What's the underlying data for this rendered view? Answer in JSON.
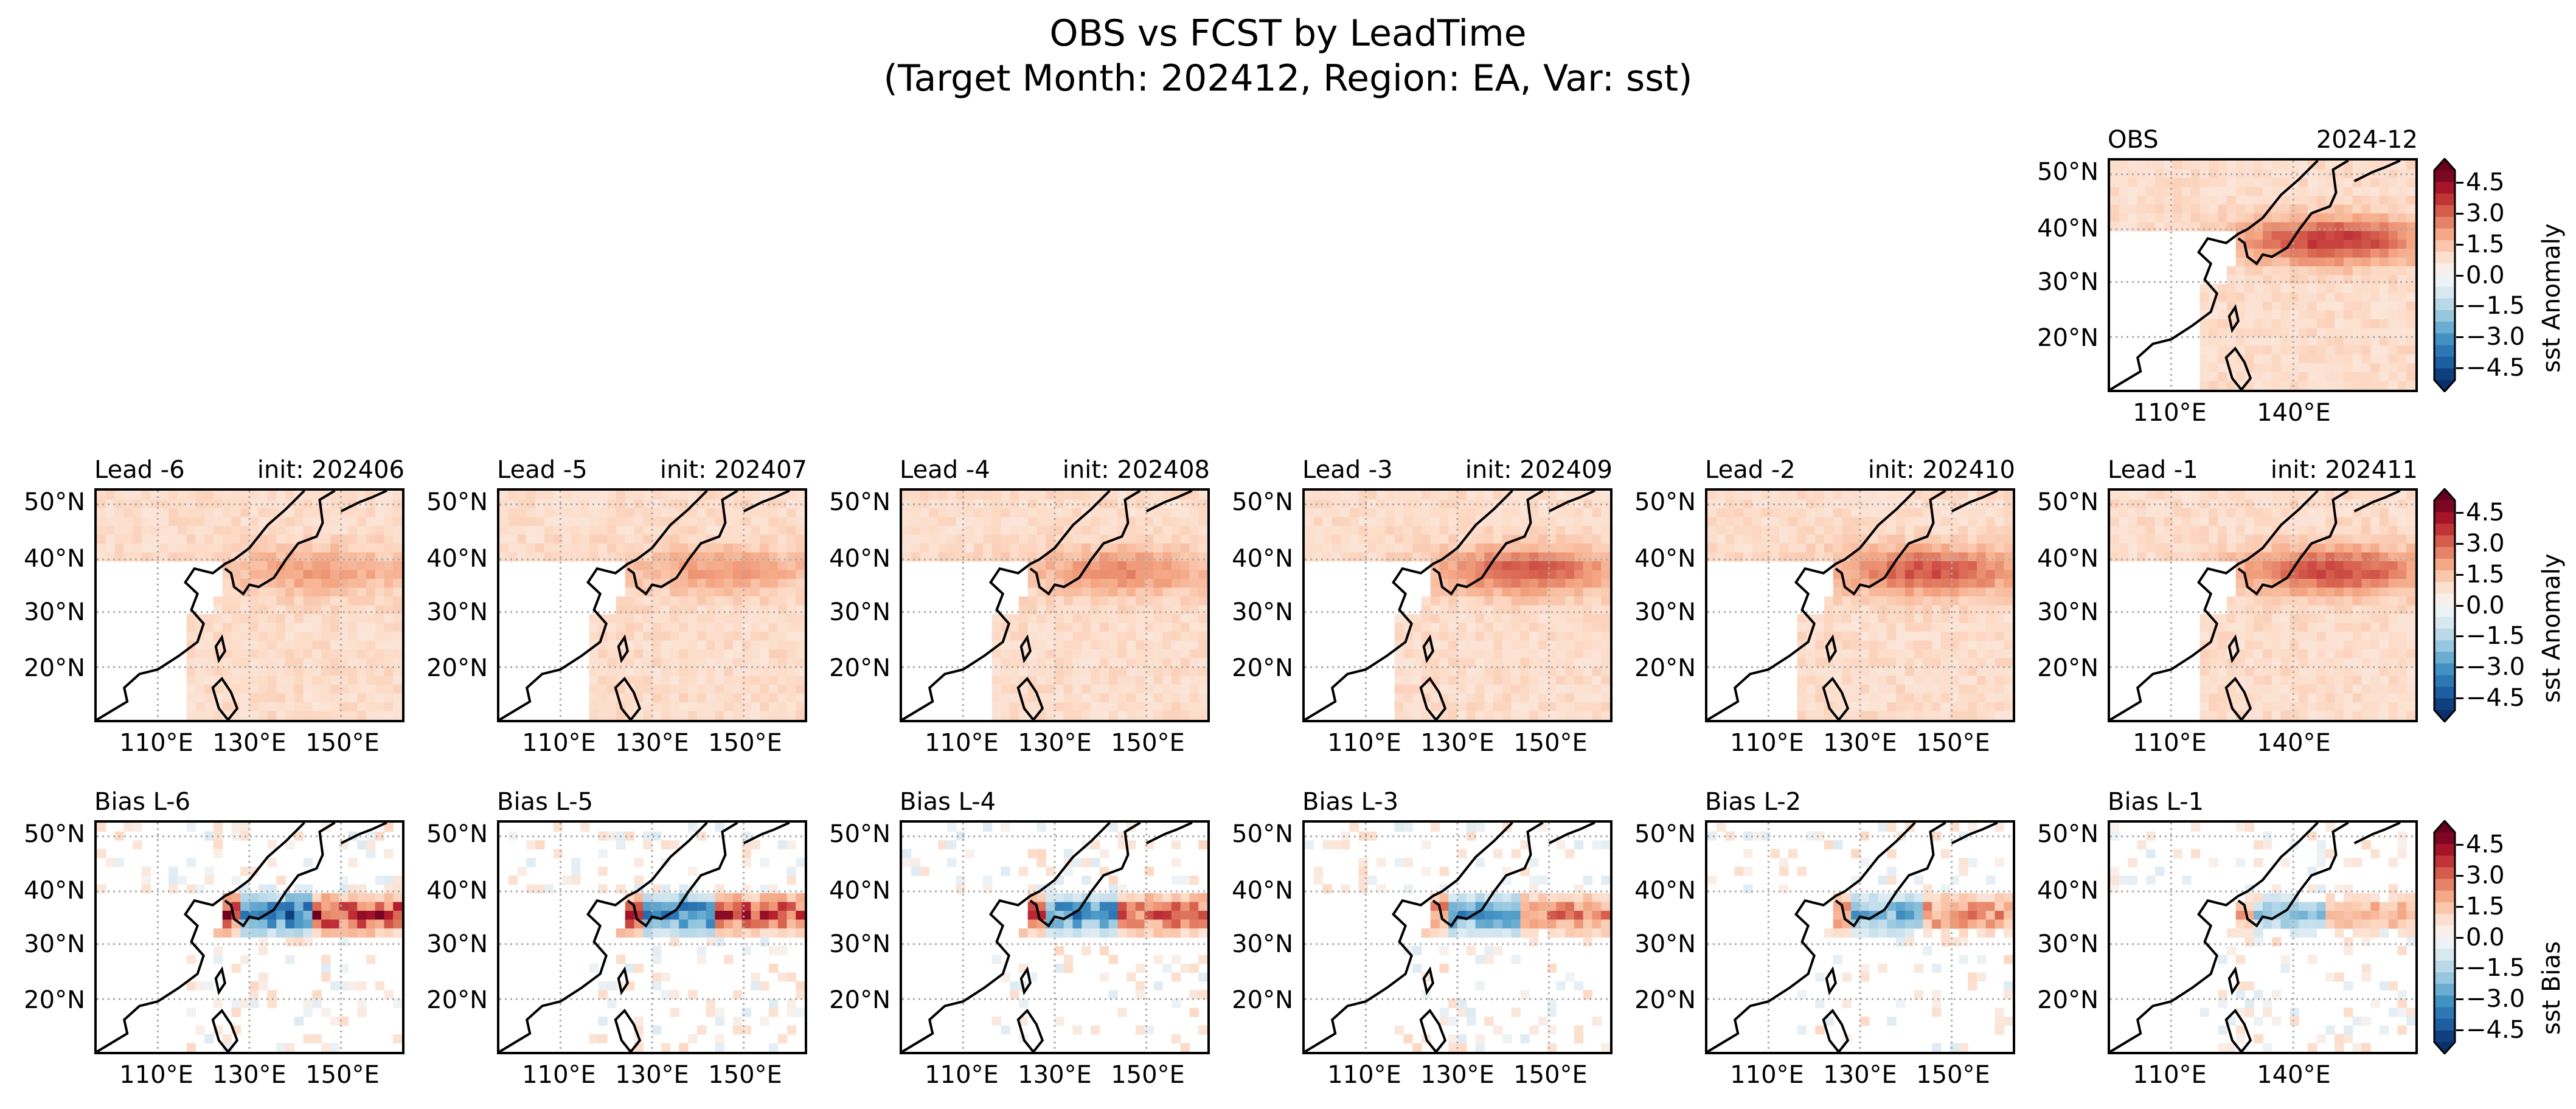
{
  "figure": {
    "title_line1": "OBS vs FCST by LeadTime",
    "title_line2": "(Target Month: 202412, Region: EA, Var: sst)"
  },
  "obs_panel": {
    "left_title": "OBS",
    "right_title": "2024-12",
    "x_ticks": [
      "110°E",
      "140°E"
    ]
  },
  "lead_panels": [
    {
      "left_title": "Lead -6",
      "right_title": "init: 202406",
      "intensity": 0.45
    },
    {
      "left_title": "Lead -5",
      "right_title": "init: 202407",
      "intensity": 0.45
    },
    {
      "left_title": "Lead -4",
      "right_title": "init: 202408",
      "intensity": 0.55
    },
    {
      "left_title": "Lead -3",
      "right_title": "init: 202409",
      "intensity": 0.8
    },
    {
      "left_title": "Lead -2",
      "right_title": "init: 202410",
      "intensity": 0.85
    },
    {
      "left_title": "Lead -1",
      "right_title": "init: 202411",
      "intensity": 0.9
    }
  ],
  "bias_panels": [
    {
      "left_title": "Bias L-6",
      "intensity": 1.0
    },
    {
      "left_title": "Bias L-5",
      "intensity": 0.95
    },
    {
      "left_title": "Bias L-4",
      "intensity": 0.85
    },
    {
      "left_title": "Bias L-3",
      "intensity": 0.75
    },
    {
      "left_title": "Bias L-2",
      "intensity": 0.65
    },
    {
      "left_title": "Bias L-1",
      "intensity": 0.5
    }
  ],
  "axes": {
    "y_ticks": [
      "50°N",
      "40°N",
      "30°N",
      "20°N"
    ],
    "x_ticks": [
      "110°E",
      "130°E",
      "150°E"
    ],
    "x_ticks_last_column": [
      "110°E",
      "140°E"
    ]
  },
  "colorbars": [
    {
      "label": "sst Anomaly",
      "ticks": [
        "4.5",
        "3.0",
        "1.5",
        "0.0",
        "−1.5",
        "−3.0",
        "−4.5"
      ]
    },
    {
      "label": "sst Anomaly",
      "ticks": [
        "4.5",
        "3.0",
        "1.5",
        "0.0",
        "−1.5",
        "−3.0",
        "−4.5"
      ]
    },
    {
      "label": "sst Bias",
      "ticks": [
        "4.5",
        "3.0",
        "1.5",
        "0.0",
        "−1.5",
        "−3.0",
        "−4.5"
      ]
    }
  ],
  "colormap": {
    "name": "RdBu_r",
    "stops": [
      "#08306b",
      "#2166ac",
      "#4393c3",
      "#92c5de",
      "#d1e5f0",
      "#f7f7f7",
      "#fddbc7",
      "#f4a582",
      "#d6604d",
      "#b2182b",
      "#67001f"
    ]
  },
  "land_color": "#ffffff",
  "grid_color": "#aaaaaa"
}
